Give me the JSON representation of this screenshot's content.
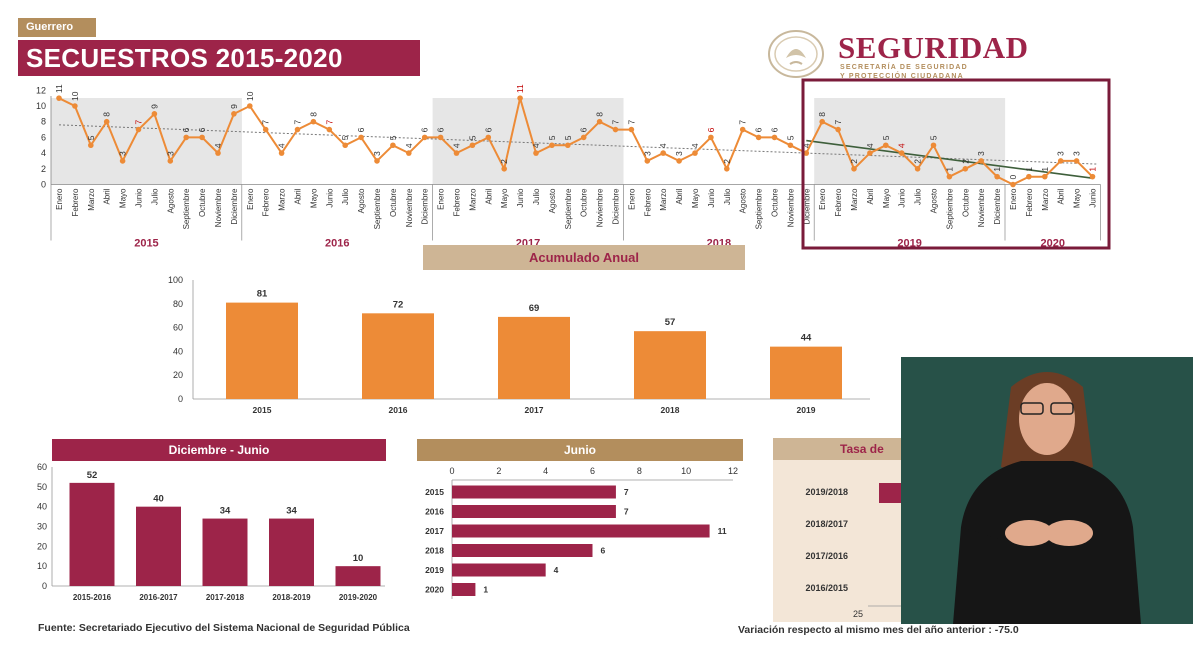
{
  "header": {
    "state_tab": "Guerrero",
    "title": "SECUESTROS 2015-2020",
    "brand": "SEGURIDAD",
    "brand_sub1": "SECRETARÍA DE SEGURIDAD",
    "brand_sub2": "Y PROTECCIÓN CIUDADANA"
  },
  "footer": {
    "source": "Fuente: Secretariado Ejecutivo del Sistema Nacional de Seguridad Pública",
    "variation": "Variación respecto al mismo mes del año anterior : -75.0"
  },
  "colors": {
    "orange": "#ed8b37",
    "wine": "#9d2449",
    "gold": "#b38e5d",
    "trend_green": "#3e5f3b"
  },
  "icons": {
    "seal": "coat-of-arms-icon",
    "interpreter": "sign-language-interpreter"
  },
  "chart_data": [
    {
      "type": "line",
      "title": "SECUESTROS 2015-2020",
      "months": [
        "Enero",
        "Febrero",
        "Marzo",
        "Abril",
        "Mayo",
        "Junio",
        "Julio",
        "Agosto",
        "Septiembre",
        "Octubre",
        "Noviembre",
        "Diciembre"
      ],
      "years": [
        "2015",
        "2016",
        "2017",
        "2018",
        "2019",
        "2020"
      ],
      "x_labels": [
        "Enero",
        "Febrero",
        "Marzo",
        "Abril",
        "Mayo",
        "Junio",
        "Julio",
        "Agosto",
        "Septiembre",
        "Octubre",
        "Noviembre",
        "Diciembre",
        "Enero",
        "Febrero",
        "Marzo",
        "Abril",
        "Mayo",
        "Junio",
        "Julio",
        "Agosto",
        "Septiembre",
        "Octubre",
        "Noviembre",
        "Diciembre",
        "Enero",
        "Febrero",
        "Marzo",
        "Abril",
        "Mayo",
        "Junio",
        "Julio",
        "Agosto",
        "Septiembre",
        "Octubre",
        "Noviembre",
        "Diciembre",
        "Enero",
        "Febrero",
        "Marzo",
        "Abril",
        "Mayo",
        "Junio",
        "Julio",
        "Agosto",
        "Septiembre",
        "Octubre",
        "Noviembre",
        "Diciembre",
        "Enero",
        "Febrero",
        "Marzo",
        "Abril",
        "Mayo",
        "Junio",
        "Julio",
        "Agosto",
        "Septiembre",
        "Octubre",
        "Noviembre",
        "Diciembre",
        "Enero",
        "Febrero",
        "Marzo",
        "Abril",
        "Mayo",
        "Junio"
      ],
      "values": [
        11,
        10,
        5,
        8,
        3,
        7,
        9,
        3,
        6,
        6,
        4,
        9,
        10,
        7,
        4,
        7,
        8,
        7,
        5,
        6,
        3,
        5,
        4,
        6,
        6,
        4,
        5,
        6,
        2,
        11,
        4,
        5,
        5,
        6,
        8,
        7,
        7,
        3,
        4,
        3,
        4,
        6,
        2,
        7,
        6,
        6,
        5,
        4,
        8,
        7,
        2,
        4,
        5,
        4,
        2,
        5,
        1,
        2,
        3,
        1,
        0,
        1,
        1,
        3,
        3,
        1
      ],
      "june_indices": [
        5,
        17,
        29,
        41,
        53,
        65
      ],
      "yticks": [
        0,
        2,
        4,
        6,
        8,
        10,
        12
      ],
      "ylim": [
        0,
        12
      ],
      "trend_all": [
        7.6,
        2.6
      ],
      "trend_recent": [
        5.6,
        0.8
      ],
      "highlight": "Diciembre 2018 - Junio 2020"
    },
    {
      "type": "bar",
      "title": "Acumulado Anual",
      "categories": [
        "2015",
        "2016",
        "2017",
        "2018",
        "2019"
      ],
      "values": [
        81,
        72,
        69,
        57,
        44
      ],
      "yticks": [
        0,
        20,
        40,
        60,
        80,
        100
      ],
      "ylim": [
        0,
        100
      ]
    },
    {
      "type": "bar",
      "title": "Diciembre - Junio",
      "categories": [
        "2015-2016",
        "2016-2017",
        "2017-2018",
        "2018-2019",
        "2019-2020"
      ],
      "values": [
        52,
        40,
        34,
        34,
        10
      ],
      "yticks": [
        0,
        10,
        20,
        30,
        40,
        50,
        60
      ],
      "ylim": [
        0,
        60
      ]
    },
    {
      "type": "bar",
      "orientation": "horizontal",
      "title": "Junio",
      "categories": [
        "2015",
        "2016",
        "2017",
        "2018",
        "2019",
        "2020"
      ],
      "values": [
        7,
        7,
        11,
        6,
        4,
        1
      ],
      "xticks": [
        0,
        2,
        4,
        6,
        8,
        10,
        12
      ],
      "xlim": [
        0,
        12
      ]
    },
    {
      "type": "bar",
      "orientation": "horizontal",
      "title": "Tasa de",
      "categories": [
        "2019/2018",
        "2018/2017",
        "2017/2016",
        "2016/2015"
      ],
      "xticks_visible": [
        "25"
      ]
    }
  ]
}
